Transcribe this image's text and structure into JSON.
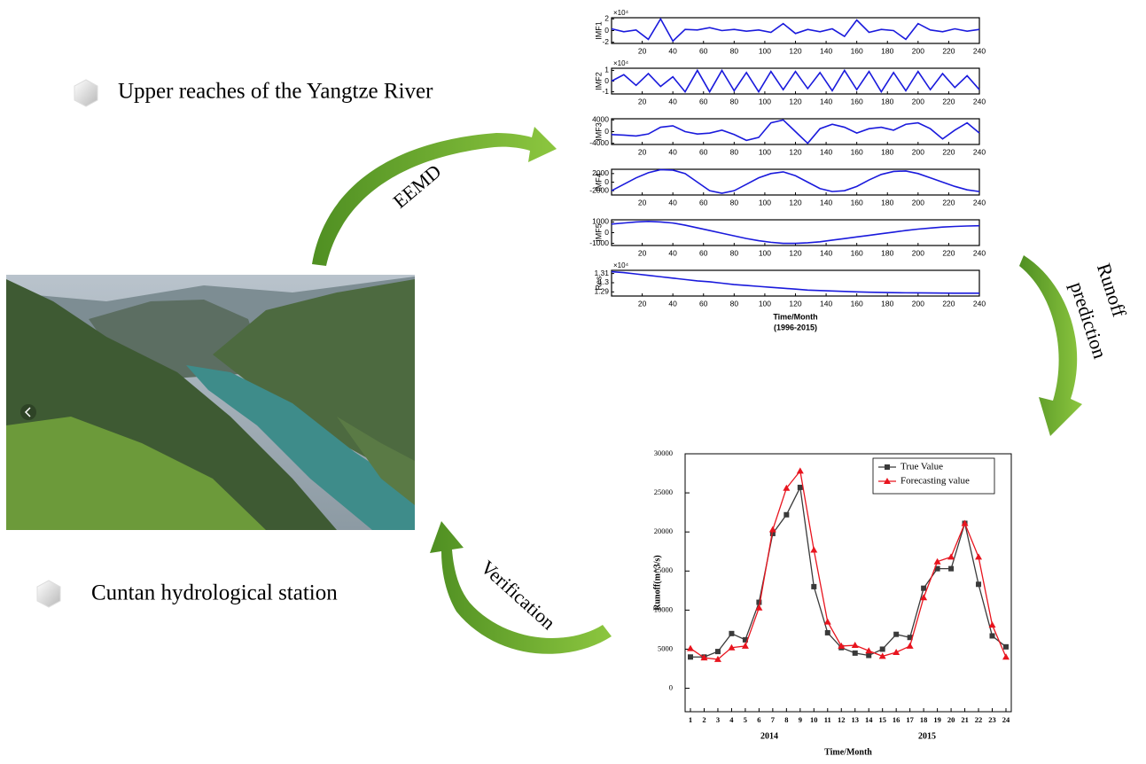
{
  "diagram": {
    "title_top": "Upper reaches of the Yangtze River",
    "title_bottom": "Cuntan hydrological station",
    "arrow_eemd": "EEMD",
    "arrow_runoff": [
      "Runoff",
      "prediction"
    ],
    "arrow_verification": "Verification"
  },
  "chart_data": [
    {
      "type": "stacked-panels",
      "x": [
        0,
        8,
        16,
        24,
        32,
        40,
        48,
        56,
        64,
        72,
        80,
        88,
        96,
        104,
        112,
        120,
        128,
        136,
        144,
        152,
        160,
        168,
        176,
        184,
        192,
        200,
        208,
        216,
        224,
        232,
        240
      ],
      "xlim": [
        0,
        240
      ],
      "xticks": [
        20,
        40,
        60,
        80,
        100,
        120,
        140,
        160,
        180,
        200,
        220,
        240
      ],
      "xlabel": "Time/Month",
      "xlabel_note": "(1996-2015)",
      "color": "#1a1adc",
      "panels": [
        {
          "ylabel": "IMF1",
          "scale_label": "×10⁴",
          "ylim": [
            -2.2,
            2.2
          ],
          "yticks": [
            2,
            0,
            -2
          ],
          "values": [
            0.3,
            -0.2,
            0.1,
            -1.5,
            2,
            -1.8,
            0.2,
            0.1,
            0.5,
            0,
            0.2,
            -0.1,
            0.1,
            -0.3,
            1.2,
            -0.5,
            0.2,
            -0.2,
            0.3,
            -1,
            1.8,
            -0.3,
            0.2,
            0,
            -1.5,
            1.2,
            0.1,
            -0.2,
            0.3,
            -0.1,
            0.2
          ]
        },
        {
          "ylabel": "IMF2",
          "scale_label": "×10⁴",
          "ylim": [
            -1.2,
            1.2
          ],
          "yticks": [
            1,
            0,
            -1
          ],
          "values": [
            0,
            0.6,
            -0.4,
            0.7,
            -0.5,
            0.4,
            -1,
            1,
            -1,
            1,
            -0.9,
            0.8,
            -1,
            0.9,
            -0.8,
            0.9,
            -0.7,
            0.8,
            -0.9,
            1,
            -0.8,
            0.9,
            -1,
            0.8,
            -0.9,
            0.9,
            -0.8,
            0.7,
            -0.6,
            0.5,
            -0.8
          ]
        },
        {
          "ylabel": "IMF3",
          "ylim": [
            -4400,
            4400
          ],
          "yticks": [
            4000,
            0,
            -4000
          ],
          "values": [
            -1000,
            -1200,
            -1500,
            -800,
            1500,
            2000,
            0,
            -800,
            -500,
            500,
            -1000,
            -3000,
            -2000,
            3000,
            4000,
            0,
            -4000,
            1000,
            2500,
            1500,
            -500,
            1000,
            1500,
            500,
            2500,
            3000,
            1000,
            -2500,
            500,
            3000,
            -500
          ]
        },
        {
          "ylabel": "IMF4",
          "ylim": [
            -3000,
            3000
          ],
          "yticks": [
            2000,
            0,
            -2000
          ],
          "values": [
            -2000,
            -500,
            1000,
            2200,
            2900,
            2800,
            2000,
            0,
            -2000,
            -2600,
            -2000,
            -500,
            1000,
            2000,
            2400,
            1500,
            0,
            -1500,
            -2200,
            -2000,
            -1000,
            500,
            1800,
            2500,
            2600,
            2000,
            1000,
            0,
            -1000,
            -1800,
            -2200
          ]
        },
        {
          "ylabel": "IMF5",
          "ylim": [
            -1200,
            1200
          ],
          "yticks": [
            1000,
            0,
            -1000
          ],
          "values": [
            800,
            900,
            1000,
            1050,
            1000,
            900,
            700,
            450,
            200,
            -50,
            -300,
            -550,
            -750,
            -900,
            -1000,
            -1000,
            -950,
            -850,
            -700,
            -550,
            -400,
            -250,
            -100,
            50,
            200,
            330,
            430,
            520,
            580,
            620,
            650
          ]
        },
        {
          "ylabel": "Res",
          "scale_label": "×10⁴",
          "ylim": [
            1.2855,
            1.3135
          ],
          "yticks": [
            1.31,
            1.3,
            1.29
          ],
          "values": [
            1.312,
            1.311,
            1.3095,
            1.308,
            1.3065,
            1.305,
            1.3035,
            1.302,
            1.301,
            1.2995,
            1.298,
            1.297,
            1.296,
            1.295,
            1.294,
            1.293,
            1.292,
            1.2915,
            1.291,
            1.2905,
            1.29,
            1.2897,
            1.2894,
            1.2892,
            1.289,
            1.2889,
            1.2888,
            1.2887,
            1.2886,
            1.2886,
            1.2886
          ]
        }
      ]
    },
    {
      "type": "line",
      "x": [
        1,
        2,
        3,
        4,
        5,
        6,
        7,
        8,
        9,
        10,
        11,
        12,
        13,
        14,
        15,
        16,
        17,
        18,
        19,
        20,
        21,
        22,
        23,
        24
      ],
      "xlim": [
        1,
        24
      ],
      "xticks": [
        1,
        2,
        3,
        4,
        5,
        6,
        7,
        8,
        9,
        10,
        11,
        12,
        13,
        14,
        15,
        16,
        17,
        18,
        19,
        20,
        21,
        22,
        23,
        24
      ],
      "year_labels": [
        "2014",
        "2015"
      ],
      "xlabel": "Time/Month",
      "ylabel": "Runoff(m^3/s)",
      "ylim": [
        -3000,
        30000
      ],
      "yticks": [
        0,
        5000,
        10000,
        15000,
        20000,
        25000,
        30000
      ],
      "legend": "top-right",
      "series": [
        {
          "name": "True Value",
          "color": "#3a3a3a",
          "marker": "square",
          "values": [
            4000,
            4000,
            4700,
            7000,
            6200,
            11000,
            19800,
            22200,
            25700,
            13000,
            7100,
            5200,
            4500,
            4200,
            5000,
            6900,
            6500,
            12800,
            15300,
            15300,
            21100,
            13300,
            6700,
            5300
          ]
        },
        {
          "name": "Forecasting value",
          "color": "#e8141e",
          "marker": "triangle",
          "values": [
            5100,
            3900,
            3700,
            5200,
            5400,
            10300,
            20300,
            25600,
            27800,
            17700,
            8500,
            5400,
            5500,
            4800,
            4100,
            4600,
            5400,
            11600,
            16200,
            16800,
            21100,
            16800,
            8100,
            4000
          ]
        }
      ]
    }
  ]
}
